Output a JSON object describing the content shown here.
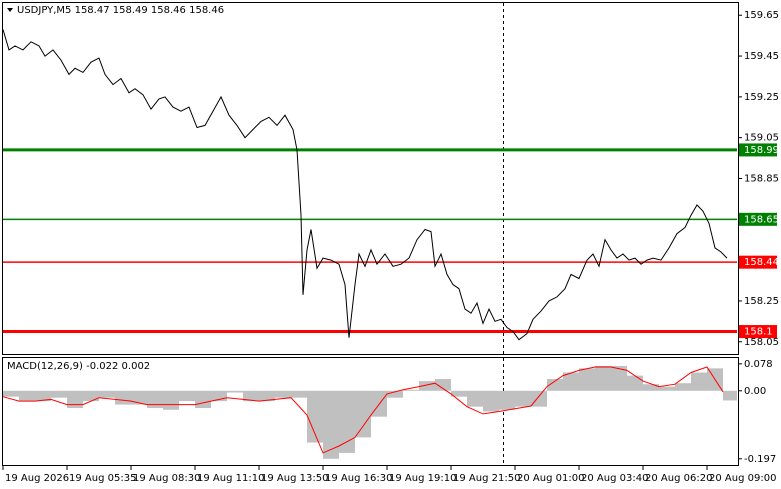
{
  "chart_data": [
    {
      "type": "line",
      "title": "USDJPY,M5  158.47 158.49 158.46 158.46",
      "x": [
        0,
        3,
        6,
        10,
        14,
        18,
        21,
        25,
        29,
        33,
        36,
        40,
        44,
        48,
        51,
        55,
        59,
        63,
        66,
        70,
        74,
        78,
        81,
        85,
        89,
        93,
        97,
        101,
        105,
        109,
        113,
        117,
        121,
        125,
        129,
        133,
        137,
        141,
        145,
        147,
        149,
        150,
        152,
        154,
        157,
        160,
        164,
        168,
        171,
        173,
        176,
        178,
        181,
        184,
        187,
        191,
        195,
        199,
        203,
        207,
        211,
        214,
        216,
        219,
        222,
        225,
        228,
        231,
        234,
        237,
        240,
        243,
        246,
        249,
        252,
        255,
        258,
        262,
        265,
        269,
        273,
        277,
        281,
        284,
        288,
        292,
        295,
        298,
        301,
        304,
        307,
        310,
        313,
        316,
        319,
        322,
        325,
        329,
        333,
        337,
        341,
        344,
        347,
        350,
        353,
        356,
        359,
        362
      ],
      "series": [
        {
          "color": "#000000",
          "values": [
            159.58,
            159.48,
            159.5,
            159.48,
            159.52,
            159.5,
            159.45,
            159.48,
            159.43,
            159.36,
            159.39,
            159.37,
            159.42,
            159.44,
            159.36,
            159.31,
            159.34,
            159.27,
            159.29,
            159.26,
            159.19,
            159.24,
            159.25,
            159.2,
            159.18,
            159.2,
            159.1,
            159.11,
            159.18,
            159.25,
            159.16,
            159.11,
            159.05,
            159.09,
            159.13,
            159.15,
            159.11,
            159.16,
            159.09,
            158.99,
            158.67,
            158.28,
            158.5,
            158.6,
            158.41,
            158.46,
            158.45,
            158.43,
            158.33,
            158.07,
            158.33,
            158.48,
            158.42,
            158.5,
            158.43,
            158.48,
            158.42,
            158.43,
            158.46,
            158.55,
            158.6,
            158.59,
            158.42,
            158.48,
            158.38,
            158.33,
            158.31,
            158.21,
            158.19,
            158.24,
            158.14,
            158.21,
            158.15,
            158.16,
            158.12,
            158.1,
            158.06,
            158.09,
            158.16,
            158.2,
            158.25,
            158.27,
            158.31,
            158.38,
            158.36,
            158.45,
            158.48,
            158.42,
            158.55,
            158.5,
            158.46,
            158.48,
            158.45,
            158.46,
            158.43,
            158.45,
            158.46,
            158.45,
            158.51,
            158.58,
            158.61,
            158.67,
            158.72,
            158.69,
            158.63,
            158.51,
            158.49,
            158.46
          ]
        }
      ],
      "levels": [
        {
          "value": 158.99,
          "color": "#008000",
          "width": 3
        },
        {
          "value": 158.65,
          "color": "#008000",
          "width": 1.5
        },
        {
          "value": 158.44,
          "color": "#ff0000",
          "width": 1.5
        },
        {
          "value": 158.1,
          "color": "#ff0000",
          "width": 3
        }
      ],
      "xlim": [
        0,
        367
      ],
      "ylim": [
        157.99,
        159.71
      ],
      "yticks": [
        159.65,
        159.45,
        159.25,
        159.05,
        158.85,
        158.25,
        158.05
      ]
    },
    {
      "type": "macd",
      "title": "MACD(12,26,9) -0.022 0.002",
      "x": [
        0,
        8,
        16,
        24,
        32,
        40,
        48,
        56,
        64,
        72,
        80,
        88,
        96,
        104,
        112,
        120,
        128,
        136,
        144,
        152,
        160,
        168,
        176,
        184,
        192,
        200,
        208,
        216,
        224,
        232,
        240,
        248,
        256,
        264,
        272,
        280,
        288,
        296,
        304,
        312,
        320,
        328,
        336,
        344,
        352,
        360
      ],
      "series": [
        {
          "type": "bar",
          "color": "#c0c0c0",
          "values": [
            -0.017,
            -0.03,
            -0.03,
            -0.02,
            -0.05,
            -0.03,
            -0.02,
            -0.04,
            -0.04,
            -0.05,
            -0.055,
            -0.03,
            -0.05,
            -0.03,
            -0.005,
            -0.03,
            -0.03,
            -0.02,
            -0.02,
            -0.15,
            -0.197,
            -0.18,
            -0.135,
            -0.075,
            -0.02,
            0.003,
            0.028,
            0.034,
            -0.017,
            -0.046,
            -0.06,
            -0.055,
            -0.046,
            -0.046,
            0.034,
            0.053,
            0.065,
            0.072,
            0.072,
            0.044,
            0.019,
            0.012,
            0.022,
            0.053,
            0.065,
            -0.028
          ]
        },
        {
          "type": "line",
          "color": "#ff0000",
          "values": [
            -0.017,
            -0.03,
            -0.03,
            -0.025,
            -0.04,
            -0.04,
            -0.02,
            -0.025,
            -0.03,
            -0.04,
            -0.04,
            -0.04,
            -0.04,
            -0.03,
            -0.02,
            -0.025,
            -0.03,
            -0.025,
            -0.02,
            -0.07,
            -0.18,
            -0.16,
            -0.135,
            -0.07,
            -0.009,
            0.003,
            0.012,
            0.022,
            -0.009,
            -0.046,
            -0.067,
            -0.06,
            -0.052,
            -0.044,
            0.012,
            0.044,
            0.059,
            0.069,
            0.069,
            0.059,
            0.028,
            0.012,
            0.019,
            0.053,
            0.069,
            -0.003
          ]
        }
      ],
      "xlim": [
        0,
        367
      ],
      "ylim": [
        -0.215,
        0.095
      ],
      "yticks": [
        0.078,
        {
          "value": 0,
          "label": "0.00"
        },
        -0.197
      ],
      "xticks": [
        {
          "value": 0,
          "label": "19 Aug 2026"
        },
        {
          "value": 32,
          "label": "19 Aug 05:35"
        },
        {
          "value": 64,
          "label": "19 Aug 08:30"
        },
        {
          "value": 96,
          "label": "19 Aug 11:10"
        },
        {
          "value": 128,
          "label": "19 Aug 13:50"
        },
        {
          "value": 160,
          "label": "19 Aug 16:30"
        },
        {
          "value": 192,
          "label": "19 Aug 19:10"
        },
        {
          "value": 224,
          "label": "19 Aug 21:50"
        },
        {
          "value": 256,
          "label": "20 Aug 01:00"
        },
        {
          "value": 288,
          "label": "20 Aug 03:40"
        },
        {
          "value": 320,
          "label": "20 Aug 06:20"
        },
        {
          "value": 352,
          "label": "20 Aug 09:00"
        }
      ]
    }
  ]
}
